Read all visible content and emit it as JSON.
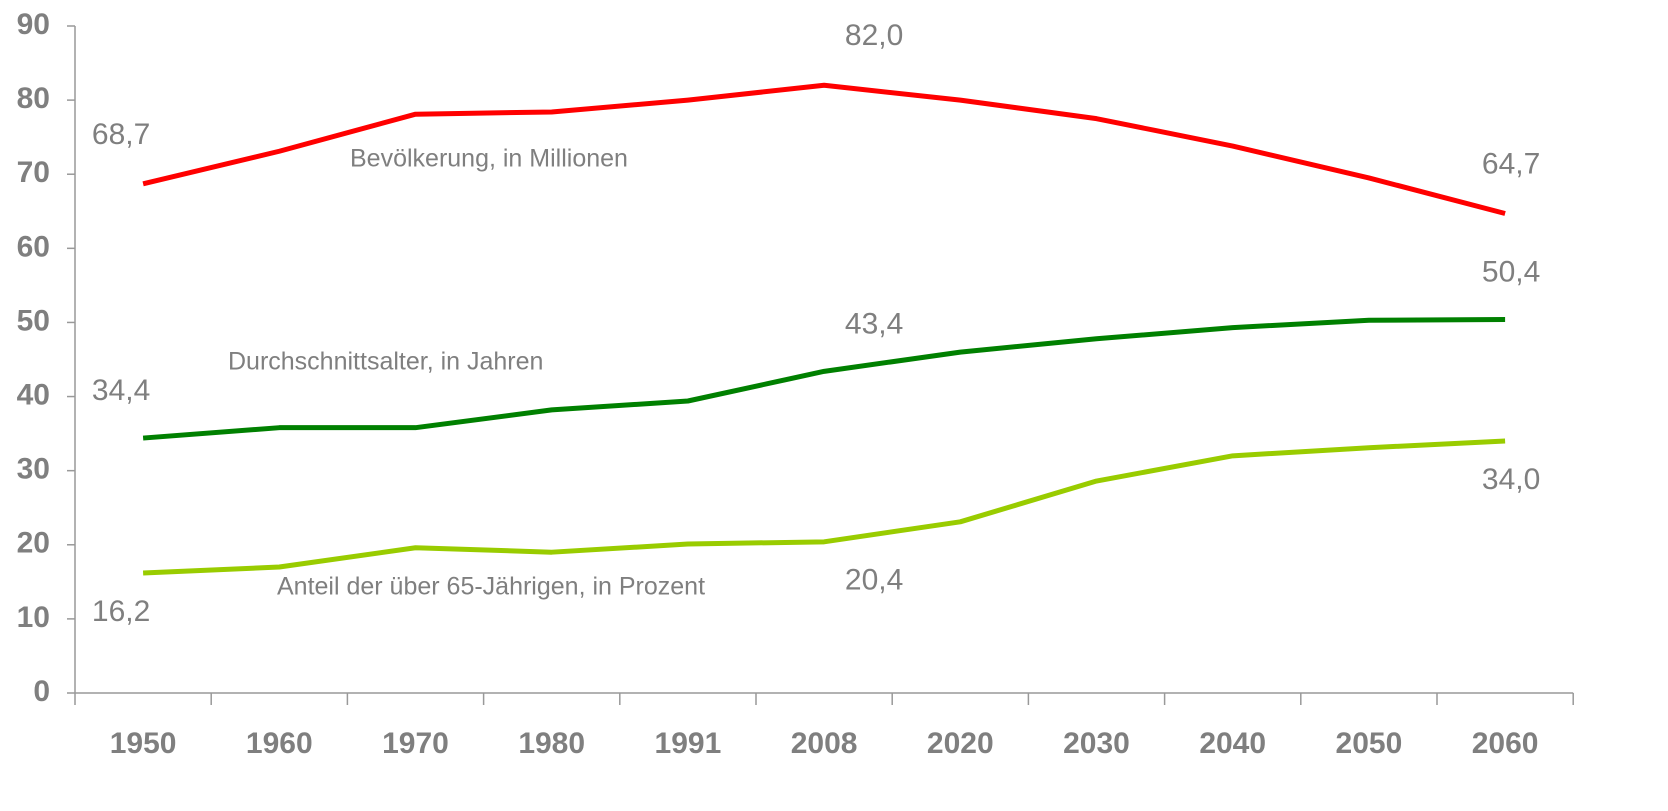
{
  "chart_data": {
    "type": "line",
    "categories": [
      "1950",
      "1960",
      "1970",
      "1980",
      "1991",
      "2008",
      "2020",
      "2030",
      "2040",
      "2050",
      "2060"
    ],
    "series": [
      {
        "name": "Bevölkerung, in Millionen",
        "color": "#ff0000",
        "values": [
          68.7,
          73.1,
          78.1,
          78.4,
          80.0,
          82.0,
          80.0,
          77.5,
          73.8,
          69.5,
          64.7
        ],
        "value_labels": [
          "68,7",
          null,
          null,
          null,
          null,
          "82,0",
          null,
          null,
          null,
          null,
          "64,7"
        ]
      },
      {
        "name": "Durchschnittsalter, in Jahren",
        "color": "#008000",
        "values": [
          34.4,
          35.8,
          35.8,
          38.2,
          39.4,
          43.4,
          46.0,
          47.8,
          49.3,
          50.3,
          50.4
        ],
        "value_labels": [
          "34,4",
          null,
          null,
          null,
          null,
          "43,4",
          null,
          null,
          null,
          null,
          "50,4"
        ]
      },
      {
        "name": "Anteil der über 65-Jährigen, in Prozent",
        "color": "#99cc00",
        "values": [
          16.2,
          17.0,
          19.6,
          19.0,
          20.1,
          20.4,
          23.1,
          28.6,
          32.0,
          33.1,
          34.0
        ],
        "value_labels": [
          "16,2",
          null,
          null,
          null,
          null,
          "20,4",
          null,
          null,
          null,
          null,
          "34,0"
        ]
      }
    ],
    "ylim": [
      0,
      90
    ],
    "yticks": [
      0,
      10,
      20,
      30,
      40,
      50,
      60,
      70,
      80,
      90
    ],
    "grid": false
  }
}
